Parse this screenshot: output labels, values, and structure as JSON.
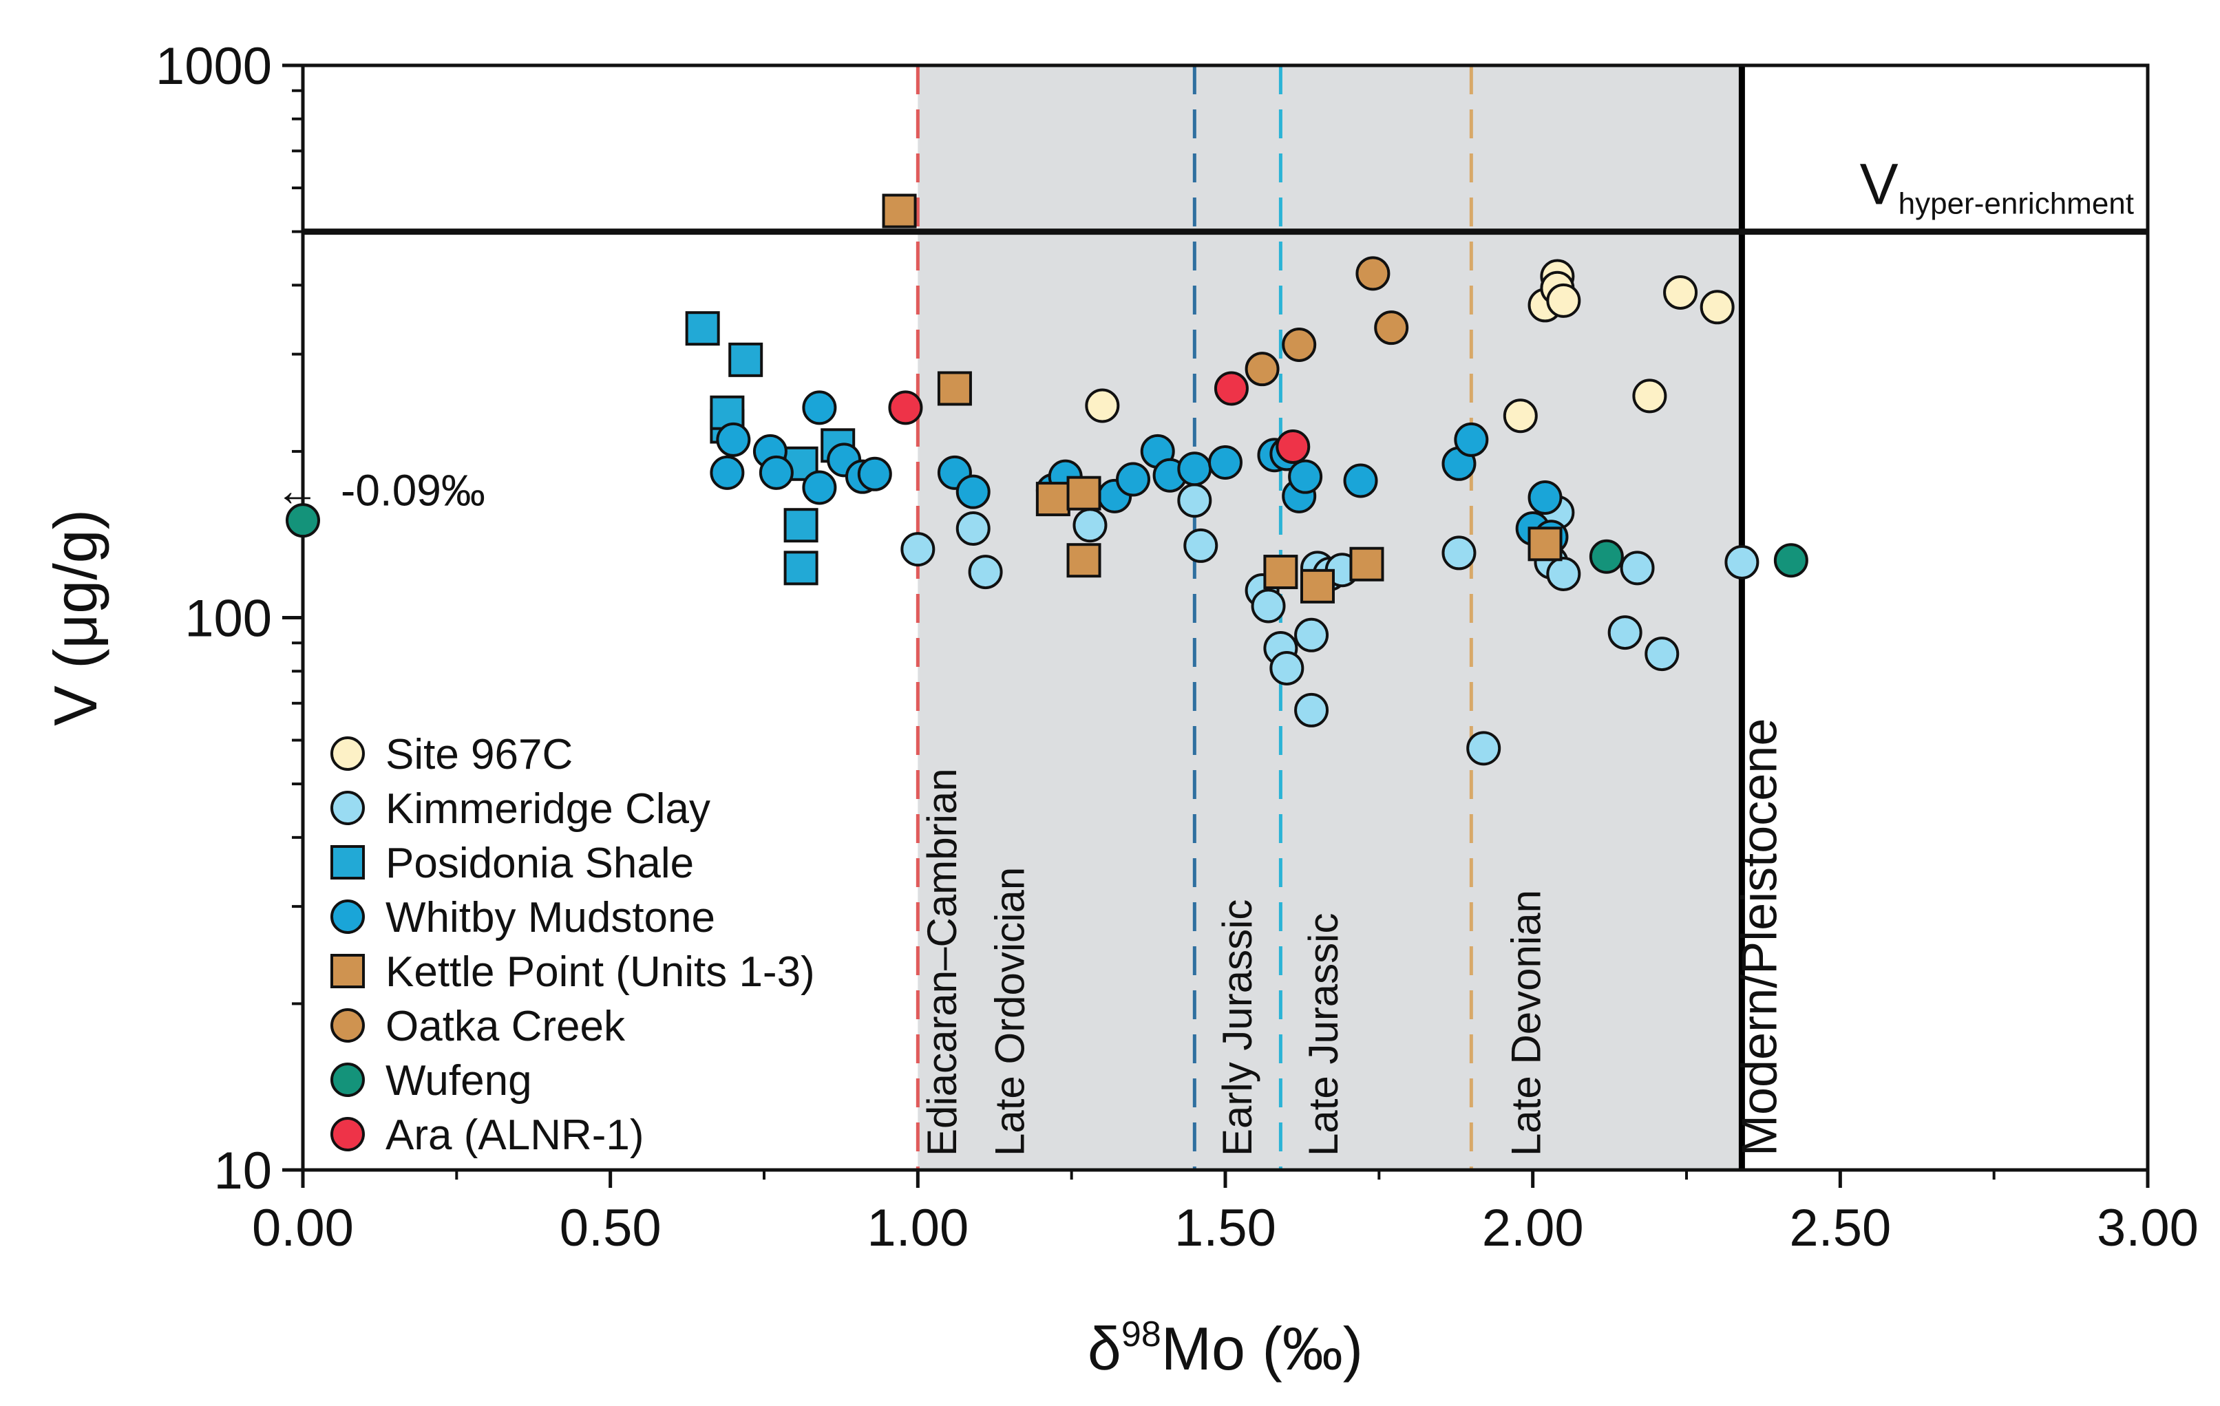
{
  "chart_data": {
    "type": "scatter",
    "title": "",
    "xlabel": "δ98Mo (‰)",
    "xlabel_main": "δ",
    "xlabel_sup": "98",
    "xlabel_rest": "Mo (‰)",
    "ylabel": "V (μg/g)",
    "xlim": [
      0,
      3
    ],
    "ylim": [
      10,
      1000
    ],
    "y_scale": "log",
    "grid": false,
    "legend_position": "bottom-left",
    "x_ticks": [
      "0.00",
      "0.50",
      "1.00",
      "1.50",
      "2.00",
      "2.50",
      "3.00"
    ],
    "y_ticks": [
      "10",
      "100",
      "1000"
    ],
    "shaded_region": {
      "x": [
        1.0,
        2.34
      ],
      "color": "#dcdee0"
    },
    "threshold": {
      "y": 500,
      "label_main": "V",
      "label_sub": "hyper-enrichment"
    },
    "reference_lines": [
      {
        "x": 1.0,
        "color": "#e05a5a",
        "style": "dashed"
      },
      {
        "x": 1.45,
        "color": "#2f6fa0",
        "style": "dashed"
      },
      {
        "x": 1.59,
        "color": "#2bb3d6",
        "style": "dashed"
      },
      {
        "x": 1.9,
        "color": "#d8a868",
        "style": "dashed"
      },
      {
        "x": 2.34,
        "color": "#000000",
        "style": "solid"
      }
    ],
    "period_labels": [
      {
        "text": "Ediacaran–Cambrian",
        "x": 1.04
      },
      {
        "text": "Late Ordovician",
        "x": 1.15
      },
      {
        "text": "Early Jurassic",
        "x": 1.52
      },
      {
        "text": "Late Jurassic",
        "x": 1.66
      },
      {
        "text": "Late Devonian",
        "x": 1.99
      }
    ],
    "modern_label": "Modern/Pleistocene",
    "annotation": {
      "text": "-0.09‰",
      "arrow": "←",
      "x": 0.0,
      "y": 170
    },
    "series": [
      {
        "name": "Site 967C",
        "marker": "circle",
        "color": "#fdf1c6",
        "points": [
          [
            1.3,
            242
          ],
          [
            1.98,
            232
          ],
          [
            2.02,
            368
          ],
          [
            2.04,
            415
          ],
          [
            2.04,
            395
          ],
          [
            2.05,
            375
          ],
          [
            2.19,
            252
          ],
          [
            2.24,
            388
          ],
          [
            2.3,
            365
          ]
        ]
      },
      {
        "name": "Kimmeridge Clay",
        "marker": "circle",
        "color": "#99dbf2",
        "points": [
          [
            1.0,
            133
          ],
          [
            1.09,
            145
          ],
          [
            1.11,
            121
          ],
          [
            1.28,
            147
          ],
          [
            1.45,
            163
          ],
          [
            1.46,
            135
          ],
          [
            1.56,
            112
          ],
          [
            1.57,
            105
          ],
          [
            1.59,
            88
          ],
          [
            1.6,
            81
          ],
          [
            1.64,
            93
          ],
          [
            1.64,
            68
          ],
          [
            1.65,
            123
          ],
          [
            1.67,
            120
          ],
          [
            1.69,
            122
          ],
          [
            1.88,
            131
          ],
          [
            1.92,
            58
          ],
          [
            2.03,
            126
          ],
          [
            2.04,
            155
          ],
          [
            2.05,
            120
          ],
          [
            2.15,
            94
          ],
          [
            2.17,
            123
          ],
          [
            2.21,
            86
          ],
          [
            2.34,
            126
          ]
        ]
      },
      {
        "name": "Posidonia Shale",
        "marker": "square",
        "color": "#22a9d6",
        "points": [
          [
            0.65,
            334
          ],
          [
            0.69,
            222
          ],
          [
            0.69,
            235
          ],
          [
            0.72,
            293
          ],
          [
            0.81,
            190
          ],
          [
            0.81,
            147
          ],
          [
            0.81,
            123
          ],
          [
            0.87,
            205
          ]
        ]
      },
      {
        "name": "Whitby Mudstone",
        "marker": "circle",
        "color": "#1aa5d8",
        "points": [
          [
            0.69,
            183
          ],
          [
            0.7,
            210
          ],
          [
            0.76,
            200
          ],
          [
            0.77,
            183
          ],
          [
            0.84,
            240
          ],
          [
            0.84,
            172
          ],
          [
            0.88,
            193
          ],
          [
            0.91,
            180
          ],
          [
            0.93,
            182
          ],
          [
            1.06,
            183
          ],
          [
            1.09,
            169
          ],
          [
            1.22,
            170
          ],
          [
            1.24,
            180
          ],
          [
            1.32,
            166
          ],
          [
            1.35,
            178
          ],
          [
            1.39,
            200
          ],
          [
            1.41,
            181
          ],
          [
            1.45,
            186
          ],
          [
            1.5,
            191
          ],
          [
            1.58,
            197
          ],
          [
            1.6,
            198
          ],
          [
            1.62,
            166
          ],
          [
            1.63,
            180
          ],
          [
            1.72,
            177
          ],
          [
            1.88,
            190
          ],
          [
            1.9,
            210
          ],
          [
            2.0,
            145
          ],
          [
            2.02,
            165
          ],
          [
            2.03,
            140
          ]
        ]
      },
      {
        "name": "Kettle Point (Units 1-3)",
        "marker": "square",
        "color": "#cf9350",
        "points": [
          [
            0.97,
            545
          ],
          [
            1.06,
            260
          ],
          [
            1.22,
            164
          ],
          [
            1.27,
            168
          ],
          [
            1.27,
            127
          ],
          [
            1.59,
            121
          ],
          [
            1.65,
            114
          ],
          [
            1.73,
            125
          ],
          [
            2.02,
            136
          ]
        ]
      },
      {
        "name": "Oatka Creek",
        "marker": "circle",
        "color": "#cf9350",
        "points": [
          [
            1.56,
            282
          ],
          [
            1.62,
            312
          ],
          [
            1.74,
            420
          ],
          [
            1.77,
            335
          ]
        ]
      },
      {
        "name": "Wufeng",
        "marker": "circle",
        "color": "#14937a",
        "points": [
          [
            0.0,
            150
          ],
          [
            2.12,
            129
          ],
          [
            2.42,
            127
          ]
        ]
      },
      {
        "name": "Ara (ALNR-1)",
        "marker": "circle",
        "color": "#ee3348",
        "points": [
          [
            0.98,
            240
          ],
          [
            1.51,
            260
          ],
          [
            1.61,
            204
          ]
        ]
      }
    ]
  }
}
